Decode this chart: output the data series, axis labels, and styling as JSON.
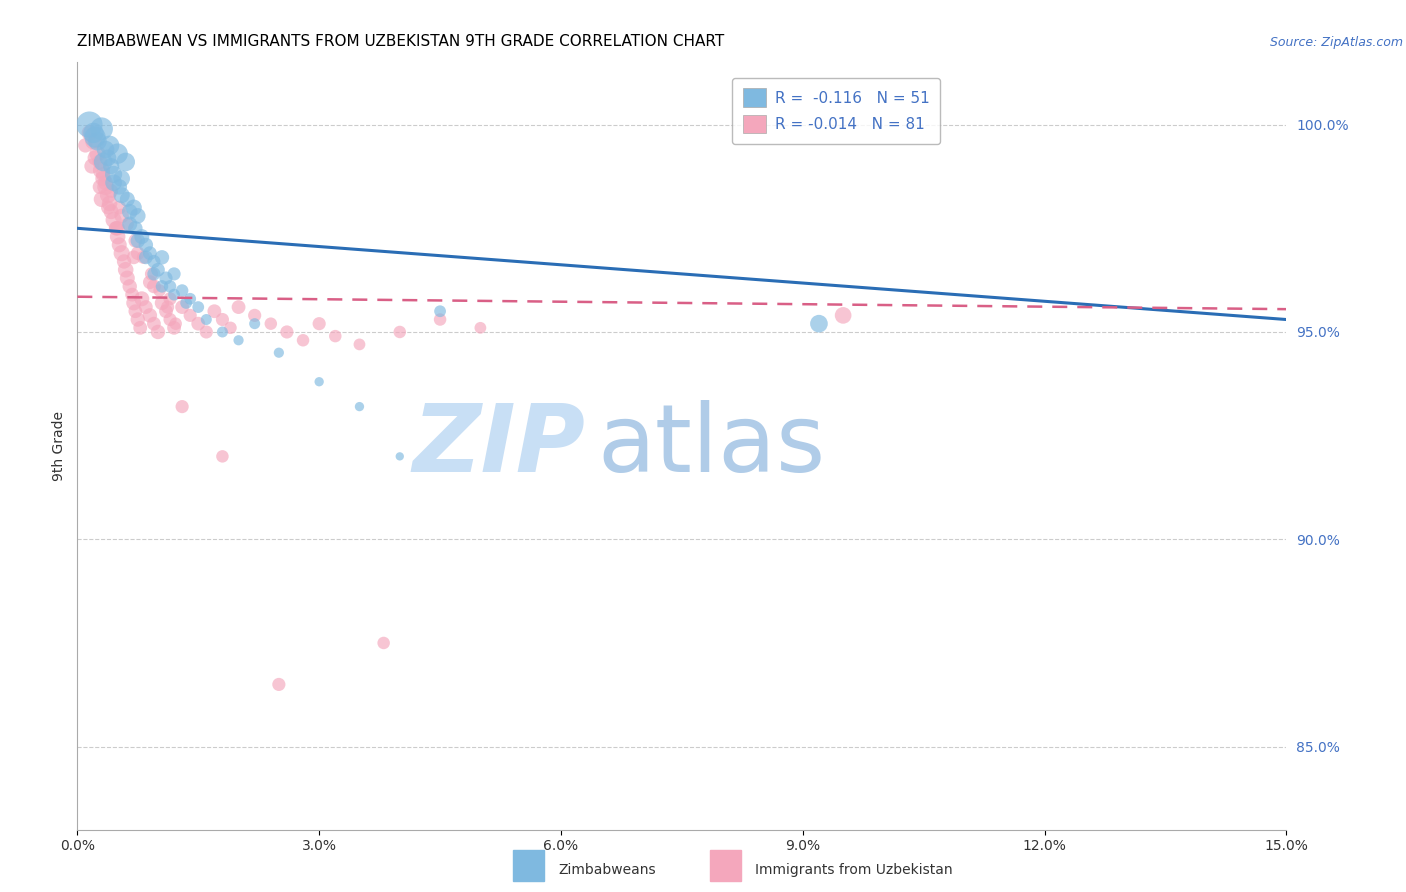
{
  "title": "ZIMBABWEAN VS IMMIGRANTS FROM UZBEKISTAN 9TH GRADE CORRELATION CHART",
  "source_text": "Source: ZipAtlas.com",
  "xlabel": "",
  "ylabel": "9th Grade",
  "x_min": 0.0,
  "x_max": 15.0,
  "y_min": 83.0,
  "y_max": 101.5,
  "y_ticks": [
    85.0,
    90.0,
    95.0,
    100.0
  ],
  "x_ticks": [
    0.0,
    3.0,
    6.0,
    9.0,
    12.0,
    15.0
  ],
  "legend_R1": "-0.116",
  "legend_N1": "51",
  "legend_R2": "-0.014",
  "legend_N2": "81",
  "color_blue": "#7fb9e0",
  "color_pink": "#f4a7bc",
  "color_blue_line": "#2a6db5",
  "color_pink_line": "#d95f86",
  "watermark_zip": "ZIP",
  "watermark_atlas": "atlas",
  "watermark_color_zip": "#c8dff5",
  "watermark_color_atlas": "#b0cce8",
  "background_color": "#ffffff",
  "blue_line_x0": 0.0,
  "blue_line_y0": 97.5,
  "blue_line_x1": 15.0,
  "blue_line_y1": 95.3,
  "pink_line_x0": 0.0,
  "pink_line_y0": 95.85,
  "pink_line_x1": 15.0,
  "pink_line_y1": 95.55,
  "blue_scatter_x": [
    0.15,
    0.2,
    0.25,
    0.3,
    0.35,
    0.38,
    0.4,
    0.42,
    0.45,
    0.5,
    0.52,
    0.55,
    0.6,
    0.62,
    0.65,
    0.7,
    0.72,
    0.75,
    0.8,
    0.85,
    0.9,
    0.95,
    1.0,
    1.05,
    1.1,
    1.15,
    1.2,
    1.3,
    1.4,
    1.5,
    1.6,
    1.8,
    2.0,
    2.2,
    2.5,
    3.0,
    3.5,
    4.0,
    4.5,
    9.2,
    0.22,
    0.32,
    0.45,
    0.55,
    0.65,
    0.75,
    0.85,
    0.95,
    1.05,
    1.2,
    1.35
  ],
  "blue_scatter_y": [
    100.0,
    99.8,
    99.6,
    99.9,
    99.4,
    99.2,
    99.5,
    99.0,
    98.8,
    99.3,
    98.5,
    98.7,
    99.1,
    98.2,
    97.9,
    98.0,
    97.5,
    97.8,
    97.3,
    97.1,
    96.9,
    96.7,
    96.5,
    96.8,
    96.3,
    96.1,
    96.4,
    96.0,
    95.8,
    95.6,
    95.3,
    95.0,
    94.8,
    95.2,
    94.5,
    93.8,
    93.2,
    92.0,
    95.5,
    95.2,
    99.7,
    99.1,
    98.6,
    98.3,
    97.6,
    97.2,
    96.8,
    96.4,
    96.1,
    95.9,
    95.7
  ],
  "blue_scatter_size": [
    200,
    120,
    100,
    150,
    90,
    80,
    110,
    75,
    85,
    120,
    70,
    80,
    100,
    65,
    70,
    75,
    60,
    70,
    65,
    60,
    55,
    50,
    55,
    60,
    50,
    45,
    50,
    45,
    40,
    40,
    35,
    35,
    30,
    35,
    30,
    25,
    25,
    20,
    40,
    90,
    130,
    100,
    80,
    75,
    65,
    60,
    55,
    50,
    45,
    40,
    40
  ],
  "pink_scatter_x": [
    0.1,
    0.15,
    0.2,
    0.25,
    0.28,
    0.3,
    0.32,
    0.35,
    0.38,
    0.4,
    0.42,
    0.45,
    0.48,
    0.5,
    0.52,
    0.55,
    0.58,
    0.6,
    0.62,
    0.65,
    0.68,
    0.7,
    0.72,
    0.75,
    0.78,
    0.8,
    0.85,
    0.9,
    0.95,
    1.0,
    1.05,
    1.1,
    1.15,
    1.2,
    1.3,
    1.4,
    1.5,
    1.6,
    1.7,
    1.8,
    1.9,
    2.0,
    2.2,
    2.4,
    2.6,
    2.8,
    3.0,
    3.2,
    3.5,
    4.0,
    4.5,
    5.0,
    9.5,
    0.22,
    0.32,
    0.42,
    0.52,
    0.62,
    0.72,
    0.82,
    0.92,
    1.02,
    1.12,
    1.22,
    0.35,
    0.55,
    0.75,
    0.95,
    1.15,
    0.18,
    0.28,
    0.38,
    0.48,
    0.3,
    0.5,
    0.7,
    0.9,
    1.3,
    1.8,
    2.5,
    3.8
  ],
  "pink_scatter_y": [
    99.5,
    99.8,
    99.6,
    99.3,
    99.1,
    98.9,
    98.7,
    98.5,
    98.3,
    98.1,
    97.9,
    97.7,
    97.5,
    97.3,
    97.1,
    96.9,
    96.7,
    96.5,
    96.3,
    96.1,
    95.9,
    95.7,
    95.5,
    95.3,
    95.1,
    95.8,
    95.6,
    95.4,
    95.2,
    95.0,
    95.7,
    95.5,
    95.3,
    95.1,
    95.6,
    95.4,
    95.2,
    95.0,
    95.5,
    95.3,
    95.1,
    95.6,
    95.4,
    95.2,
    95.0,
    94.8,
    95.2,
    94.9,
    94.7,
    95.0,
    95.3,
    95.1,
    95.4,
    99.2,
    98.8,
    98.4,
    98.0,
    97.6,
    97.2,
    96.8,
    96.4,
    96.0,
    95.6,
    95.2,
    98.6,
    97.8,
    96.9,
    96.1,
    95.8,
    99.0,
    98.5,
    98.0,
    97.5,
    98.2,
    97.5,
    96.8,
    96.2,
    93.2,
    92.0,
    86.5,
    87.5
  ],
  "pink_scatter_size": [
    60,
    70,
    80,
    75,
    65,
    85,
    70,
    80,
    75,
    70,
    65,
    75,
    60,
    70,
    65,
    75,
    60,
    70,
    65,
    60,
    55,
    65,
    55,
    60,
    55,
    65,
    55,
    60,
    55,
    60,
    60,
    55,
    50,
    55,
    55,
    50,
    55,
    50,
    55,
    50,
    45,
    55,
    50,
    45,
    50,
    45,
    50,
    45,
    40,
    45,
    45,
    40,
    80,
    65,
    60,
    55,
    55,
    50,
    55,
    50,
    50,
    45,
    50,
    45,
    65,
    60,
    55,
    55,
    50,
    65,
    60,
    55,
    55,
    70,
    60,
    55,
    55,
    50,
    45,
    50,
    45
  ]
}
